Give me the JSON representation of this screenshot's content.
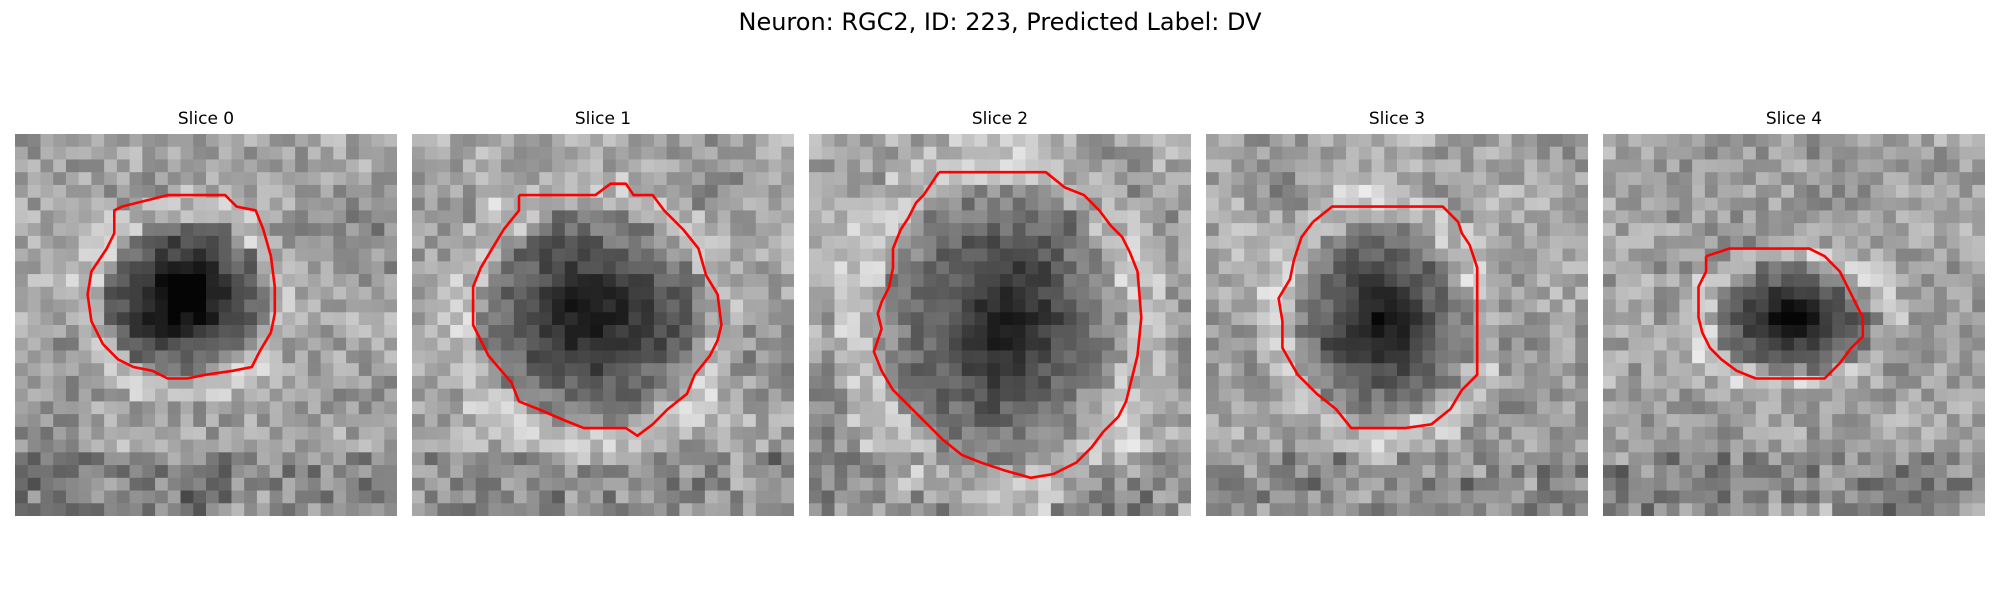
{
  "title": "Neuron: RGC2, ID: 223, Predicted Label: DV",
  "contour_color": "#ff0000",
  "colormap": "grayscale",
  "panels": [
    {
      "label": "Slice 0"
    },
    {
      "label": "Slice 1"
    },
    {
      "label": "Slice 2"
    },
    {
      "label": "Slice 3"
    },
    {
      "label": "Slice 4"
    }
  ]
}
